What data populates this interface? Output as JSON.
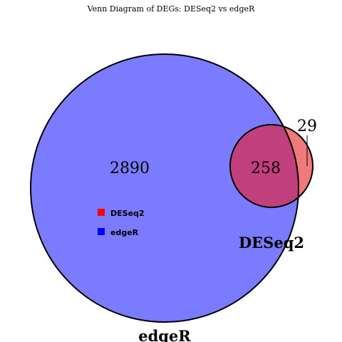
{
  "chart_data": {
    "type": "venn",
    "title": "Venn Diagram of DEGs: DESeq2 vs edgeR",
    "sets": [
      {
        "name": "edgeR",
        "color": "#7b7bff",
        "size": 3148
      },
      {
        "name": "DESeq2",
        "color": "#f07a7a",
        "size": 287
      }
    ],
    "regions": {
      "edgeR_only": 2890,
      "intersection": 258,
      "DESeq2_only": 29
    },
    "intersection_color": "#c23f7e",
    "legend": {
      "placement": "left",
      "entries": [
        {
          "label": "DESeq2",
          "color": "#ff0000"
        },
        {
          "label": "edgeR",
          "color": "#0000ff"
        }
      ]
    }
  }
}
